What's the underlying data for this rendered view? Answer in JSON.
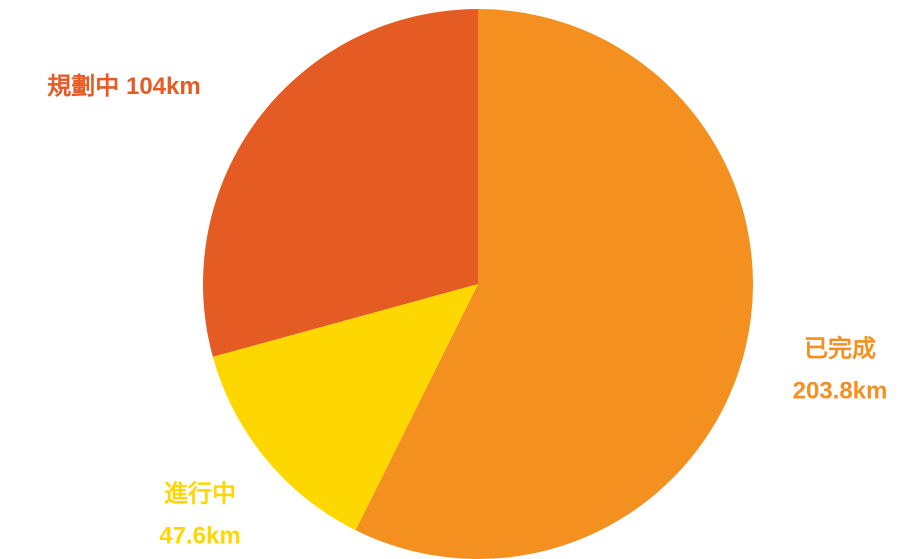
{
  "chart_data": {
    "type": "pie",
    "categories": [
      "已完成",
      "進行中",
      "規劃中"
    ],
    "values": [
      203.8,
      47.6,
      104
    ],
    "value_labels": [
      "203.8km",
      "47.6km",
      "104km"
    ],
    "colors": [
      "#f39020",
      "#ffd700",
      "#e55b24"
    ]
  }
}
